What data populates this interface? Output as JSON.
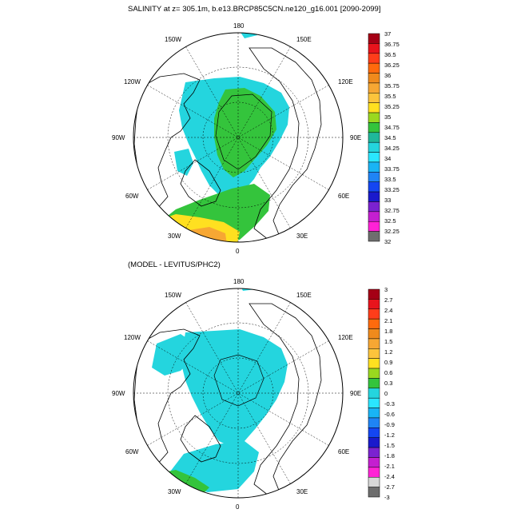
{
  "top_panel": {
    "title": "SALINITY at z= 305.1m, b.e13.BRCP85C5CN.ne120_g16.001 [2090-2099]",
    "lon_labels": {
      "top": "180",
      "tl": "150W",
      "tr": "150E",
      "l1": "120W",
      "r1": "120E",
      "l2": "90W",
      "r2": "90E",
      "l3": "60W",
      "r3": "60E",
      "bl": "30W",
      "br": "30E",
      "bottom": "0"
    },
    "colorbar": {
      "labels": [
        "37",
        "36.75",
        "36.5",
        "36.25",
        "36",
        "35.75",
        "35.5",
        "35.25",
        "35",
        "34.75",
        "34.5",
        "34.25",
        "34",
        "33.75",
        "33.5",
        "33.25",
        "33",
        "32.75",
        "32.5",
        "32.25",
        "32"
      ],
      "colors": [
        "#a50015",
        "#e8141c",
        "#ff3d1a",
        "#ff6a0d",
        "#f08a1c",
        "#f7a733",
        "#fcc43c",
        "#ffe020",
        "#9ad81f",
        "#34c43c",
        "#1fb89a",
        "#24d5de",
        "#2ae6ff",
        "#19b4f5",
        "#1f84f5",
        "#1446f2",
        "#1a1acc",
        "#7b22d0",
        "#c41fd0",
        "#ff22d6"
      ]
    }
  },
  "bottom_panel": {
    "title": "(MODEL - LEVITUS/PHC2)",
    "lon_labels": {
      "top": "180",
      "tl": "150W",
      "tr": "150E",
      "l1": "120W",
      "r1": "120E",
      "l2": "90W",
      "r2": "90E",
      "l3": "60W",
      "r3": "60E",
      "bl": "30W",
      "br": "30E",
      "bottom": "0"
    },
    "colorbar": {
      "labels": [
        "3",
        "2.7",
        "2.4",
        "2.1",
        "1.8",
        "1.5",
        "1.2",
        "0.9",
        "0.6",
        "0.3",
        "0",
        "-0.3",
        "-0.6",
        "-0.9",
        "-1.2",
        "-1.5",
        "-1.8",
        "-2.1",
        "-2.4",
        "-2.7",
        "-3"
      ],
      "colors": [
        "#a50015",
        "#e8141c",
        "#ff3d1a",
        "#ff6a0d",
        "#f08a1c",
        "#f7a733",
        "#fcc43c",
        "#ffe020",
        "#9ad81f",
        "#34c43c",
        "#24d5de",
        "#2ae6ff",
        "#19b4f5",
        "#1f84f5",
        "#1446f2",
        "#1a1acc",
        "#7b22d0",
        "#c41fd0",
        "#ff22d6",
        "#d8d8d8"
      ]
    }
  },
  "colors": {
    "ocean_bg": "#ffffff",
    "land_outline": "#000000",
    "undef": "#6e6e6e"
  }
}
